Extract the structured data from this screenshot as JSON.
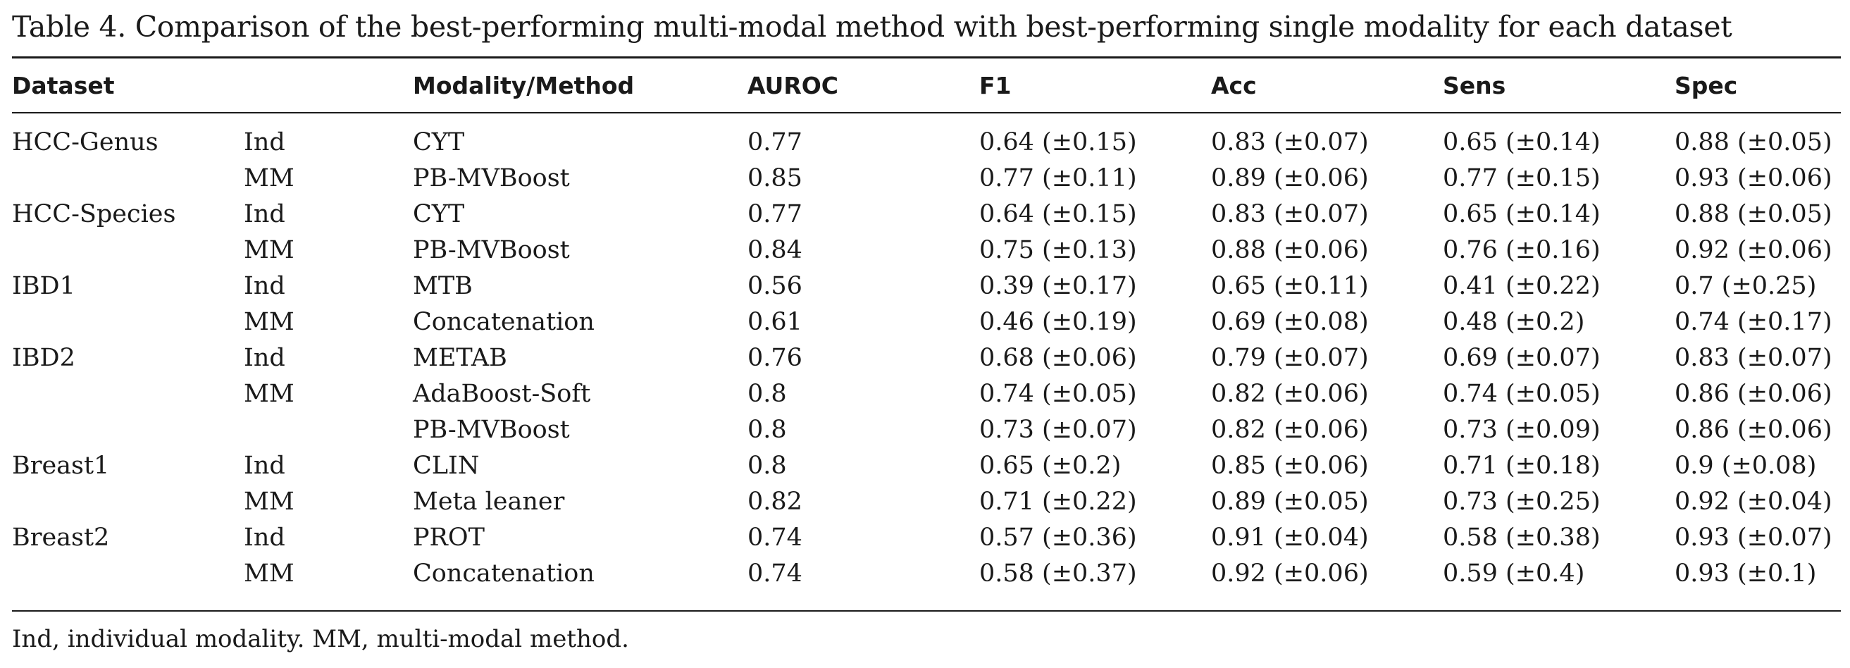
{
  "caption": "Table 4.  Comparison of the best-performing multi-modal method with best-performing single modality for each dataset",
  "headers": {
    "dataset": "Dataset",
    "type": "",
    "method": "Modality/Method",
    "auroc": "AUROC",
    "f1": "F1",
    "acc": "Acc",
    "sens": "Sens",
    "spec": "Spec"
  },
  "rows": [
    {
      "dataset": "HCC-Genus",
      "type": "Ind",
      "method": "CYT",
      "auroc": "0.77",
      "f1": "0.64 (±0.15)",
      "acc": "0.83 (±0.07)",
      "sens": "0.65 (±0.14)",
      "spec": "0.88 (±0.05)"
    },
    {
      "dataset": "",
      "type": "MM",
      "method": "PB-MVBoost",
      "auroc": "0.85",
      "f1": "0.77 (±0.11)",
      "acc": "0.89 (±0.06)",
      "sens": "0.77 (±0.15)",
      "spec": "0.93 (±0.06)"
    },
    {
      "dataset": "HCC-Species",
      "type": "Ind",
      "method": "CYT",
      "auroc": "0.77",
      "f1": "0.64 (±0.15)",
      "acc": "0.83 (±0.07)",
      "sens": "0.65 (±0.14)",
      "spec": "0.88 (±0.05)"
    },
    {
      "dataset": "",
      "type": "MM",
      "method": "PB-MVBoost",
      "auroc": "0.84",
      "f1": "0.75 (±0.13)",
      "acc": "0.88 (±0.06)",
      "sens": "0.76 (±0.16)",
      "spec": "0.92 (±0.06)"
    },
    {
      "dataset": "IBD1",
      "type": "Ind",
      "method": "MTB",
      "auroc": "0.56",
      "f1": "0.39 (±0.17)",
      "acc": "0.65 (±0.11)",
      "sens": "0.41 (±0.22)",
      "spec": "0.7 (±0.25)"
    },
    {
      "dataset": "",
      "type": "MM",
      "method": "Concatenation",
      "auroc": "0.61",
      "f1": "0.46 (±0.19)",
      "acc": "0.69 (±0.08)",
      "sens": "0.48 (±0.2)",
      "spec": "0.74 (±0.17)"
    },
    {
      "dataset": "IBD2",
      "type": "Ind",
      "method": "METAB",
      "auroc": "0.76",
      "f1": "0.68 (±0.06)",
      "acc": "0.79 (±0.07)",
      "sens": "0.69 (±0.07)",
      "spec": "0.83 (±0.07)"
    },
    {
      "dataset": "",
      "type": "MM",
      "method": "AdaBoost-Soft",
      "auroc": "0.8",
      "f1": "0.74 (±0.05)",
      "acc": "0.82 (±0.06)",
      "sens": "0.74 (±0.05)",
      "spec": "0.86 (±0.06)"
    },
    {
      "dataset": "",
      "type": "",
      "method": "PB-MVBoost",
      "auroc": "0.8",
      "f1": "0.73 (±0.07)",
      "acc": "0.82 (±0.06)",
      "sens": "0.73 (±0.09)",
      "spec": "0.86 (±0.06)"
    },
    {
      "dataset": "Breast1",
      "type": "Ind",
      "method": "CLIN",
      "auroc": "0.8",
      "f1": "0.65 (±0.2)",
      "acc": "0.85 (±0.06)",
      "sens": "0.71 (±0.18)",
      "spec": "0.9 (±0.08)"
    },
    {
      "dataset": "",
      "type": "MM",
      "method": "Meta leaner",
      "auroc": "0.82",
      "f1": "0.71 (±0.22)",
      "acc": "0.89 (±0.05)",
      "sens": "0.73 (±0.25)",
      "spec": "0.92 (±0.04)"
    },
    {
      "dataset": "Breast2",
      "type": "Ind",
      "method": "PROT",
      "auroc": "0.74",
      "f1": "0.57 (±0.36)",
      "acc": "0.91 (±0.04)",
      "sens": "0.58 (±0.38)",
      "spec": "0.93 (±0.07)"
    },
    {
      "dataset": "",
      "type": "MM",
      "method": "Concatenation",
      "auroc": "0.74",
      "f1": "0.58 (±0.37)",
      "acc": "0.92 (±0.06)",
      "sens": "0.59 (±0.4)",
      "spec": "0.93 (±0.1)"
    }
  ],
  "footnote": "Ind, individual modality. MM, multi-modal method."
}
